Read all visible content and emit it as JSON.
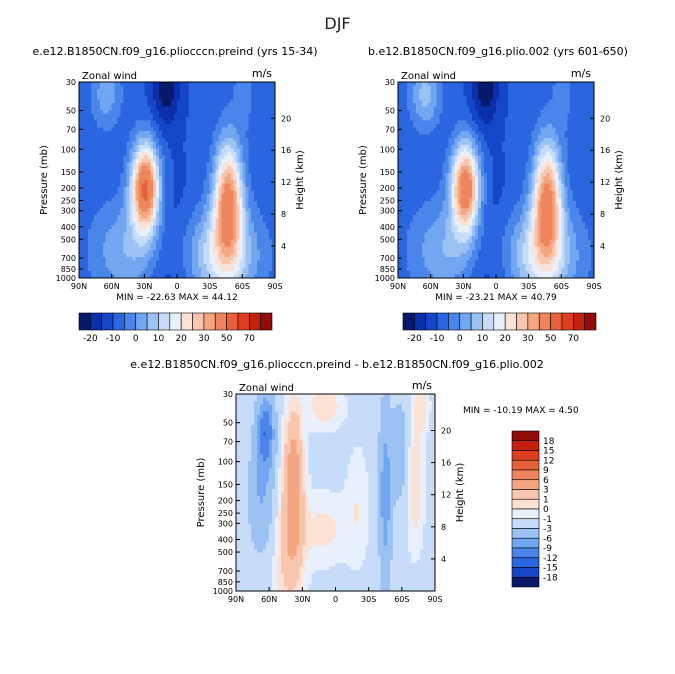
{
  "figure": {
    "title": "DJF"
  },
  "chart_data": [
    {
      "type": "heatmap",
      "title": "e.e12.B1850CN.f09_g16.pliocccn.preind (yrs 15-34)",
      "field_label": "Zonal wind",
      "units": "m/s",
      "xlabel": "",
      "ylabel": "Pressure (mb)",
      "right_label": "Height (km)",
      "x_ticks": [
        "90N",
        "60N",
        "30N",
        "0",
        "30S",
        "60S",
        "90S"
      ],
      "x_tick_values": [
        90,
        60,
        30,
        0,
        -30,
        -60,
        -90
      ],
      "y_ticks": [
        "30",
        "50",
        "70",
        "100",
        "150",
        "200",
        "250",
        "300",
        "400",
        "500",
        "700",
        "850",
        "1000"
      ],
      "y_tick_values": [
        30,
        50,
        70,
        100,
        150,
        200,
        250,
        300,
        400,
        500,
        700,
        850,
        1000
      ],
      "height_ticks": [
        "20",
        "16",
        "12",
        "8",
        "4"
      ],
      "height_tick_values": [
        20,
        16,
        12,
        8,
        4
      ],
      "stats": {
        "min_label": "MIN =",
        "min": "-22.63",
        "max_label": "MAX =",
        "max": "44.12"
      },
      "jets": [
        {
          "lat": 29,
          "p": 200,
          "value": 44.12
        },
        {
          "lat": -47,
          "p": 250,
          "value": 33
        },
        {
          "lat": 10,
          "p": 30,
          "value": -22.63
        }
      ]
    },
    {
      "type": "heatmap",
      "title": "b.e12.B1850CN.f09_g16.plio.002 (yrs 601-650)",
      "field_label": "Zonal wind",
      "units": "m/s",
      "xlabel": "",
      "ylabel": "Pressure (mb)",
      "right_label": "Height (km)",
      "x_ticks": [
        "90N",
        "60N",
        "30N",
        "0",
        "30S",
        "60S",
        "90S"
      ],
      "x_tick_values": [
        90,
        60,
        30,
        0,
        -30,
        -60,
        -90
      ],
      "y_ticks": [
        "30",
        "50",
        "70",
        "100",
        "150",
        "200",
        "250",
        "300",
        "400",
        "500",
        "700",
        "850",
        "1000"
      ],
      "y_tick_values": [
        30,
        50,
        70,
        100,
        150,
        200,
        250,
        300,
        400,
        500,
        700,
        850,
        1000
      ],
      "height_ticks": [
        "20",
        "16",
        "12",
        "8",
        "4"
      ],
      "height_tick_values": [
        20,
        16,
        12,
        8,
        4
      ],
      "stats": {
        "min_label": "MIN =",
        "min": "-23.21",
        "max_label": "MAX =",
        "max": "40.79"
      },
      "jets": [
        {
          "lat": 28,
          "p": 200,
          "value": 40.79
        },
        {
          "lat": -46,
          "p": 250,
          "value": 33
        },
        {
          "lat": 10,
          "p": 30,
          "value": -23.21
        }
      ]
    },
    {
      "type": "heatmap",
      "title": "e.e12.B1850CN.f09_g16.pliocccn.preind - b.e12.B1850CN.f09_g16.plio.002",
      "field_label": "Zonal wind",
      "units": "m/s",
      "xlabel": "",
      "ylabel": "Pressure (mb)",
      "right_label": "Height (km)",
      "x_ticks": [
        "90N",
        "60N",
        "30N",
        "0",
        "30S",
        "60S",
        "90S"
      ],
      "x_tick_values": [
        90,
        60,
        30,
        0,
        -30,
        -60,
        -90
      ],
      "y_ticks": [
        "30",
        "50",
        "70",
        "100",
        "150",
        "200",
        "250",
        "300",
        "400",
        "500",
        "700",
        "850",
        "1000"
      ],
      "y_tick_values": [
        30,
        50,
        70,
        100,
        150,
        200,
        250,
        300,
        400,
        500,
        700,
        850,
        1000
      ],
      "height_ticks": [
        "20",
        "16",
        "12",
        "8",
        "4"
      ],
      "height_tick_values": [
        20,
        16,
        12,
        8,
        4
      ],
      "stats": {
        "min_label": "MIN =",
        "min": "-10.19",
        "max_label": "MAX =",
        "max": "4.50"
      },
      "features": [
        {
          "lat": 63,
          "p_top": 30,
          "p_bottom": 300,
          "value": -10
        },
        {
          "lat": 38,
          "p_top": 30,
          "p_bottom": 1000,
          "value": 4
        },
        {
          "lat": -45,
          "p_top": 30,
          "p_bottom": 1000,
          "value": -6
        }
      ]
    }
  ],
  "colorbars": {
    "top": {
      "labels": [
        "-20",
        "-10",
        "0",
        "10",
        "20",
        "30",
        "50",
        "70"
      ],
      "colors": [
        "#08186b",
        "#0a2fa8",
        "#1446c8",
        "#2a66e0",
        "#4a86ea",
        "#72a6f0",
        "#9cc2f4",
        "#c6dcf8",
        "#e8f1fb",
        "#fbe2d4",
        "#f8c6ae",
        "#f4a683",
        "#ef855c",
        "#e8613a",
        "#de3f20",
        "#c5200e",
        "#920c0c"
      ]
    },
    "diff": {
      "labels": [
        "18",
        "15",
        "12",
        "9",
        "6",
        "3",
        "1",
        "0",
        "-1",
        "-3",
        "-6",
        "-9",
        "-12",
        "-15",
        "-18"
      ],
      "colors": [
        "#920c0c",
        "#c5200e",
        "#de3f20",
        "#e8613a",
        "#ef855c",
        "#f4a683",
        "#f8c6ae",
        "#fbe2d4",
        "#e8f1fb",
        "#c6dcf8",
        "#9cc2f4",
        "#72a6f0",
        "#4a86ea",
        "#2a66e0",
        "#1446c8",
        "#08186b"
      ]
    }
  }
}
